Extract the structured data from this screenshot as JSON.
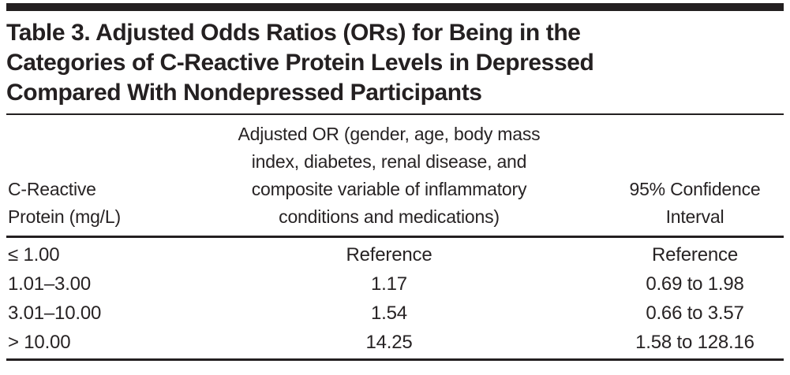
{
  "colors": {
    "text": "#272324",
    "rule": "#231f20",
    "background": "#ffffff"
  },
  "table": {
    "title": "Table 3. Adjusted Odds Ratios (ORs) for Being in the\nCategories of C-Reactive Protein Levels in Depressed\nCompared With Nondepressed Participants",
    "columns": [
      {
        "id": "crp",
        "label": "C-Reactive\nProtein (mg/L)"
      },
      {
        "id": "adjusted_or",
        "label": "Adjusted OR (gender, age, body mass\nindex, diabetes, renal disease, and\ncomposite variable of inflammatory\nconditions and medications)"
      },
      {
        "id": "ci",
        "label": "95% Confidence\nInterval"
      }
    ],
    "rows": [
      {
        "crp": "≤ 1.00",
        "adjusted_or": "Reference",
        "ci": "Reference"
      },
      {
        "crp": "1.01–3.00",
        "adjusted_or": "1.17",
        "ci": "0.69 to 1.98"
      },
      {
        "crp": "3.01–10.00",
        "adjusted_or": "1.54",
        "ci": "0.66 to 3.57"
      },
      {
        "crp": "> 10.00",
        "adjusted_or": "14.25",
        "ci": "1.58 to 128.16"
      }
    ]
  }
}
